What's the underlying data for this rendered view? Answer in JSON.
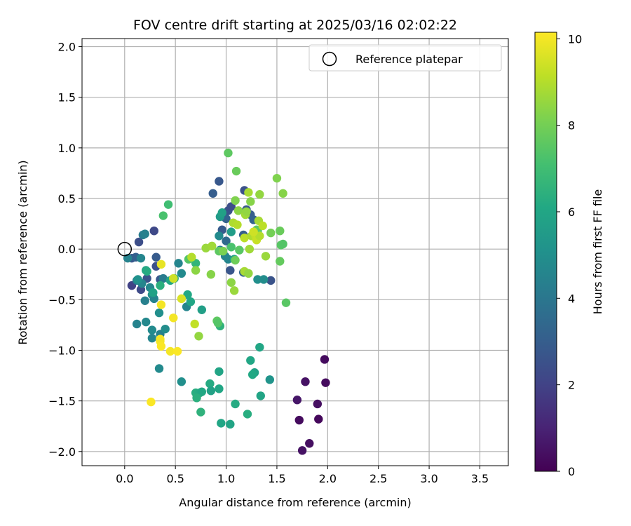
{
  "chart_data": {
    "type": "scatter",
    "title": "FOV centre drift starting at 2025/03/16 02:02:22",
    "xlabel": "Angular distance from reference (arcmin)",
    "ylabel": "Rotation from reference (arcmin)",
    "xlim": [
      -0.42,
      3.78
    ],
    "ylim": [
      -2.14,
      2.08
    ],
    "x_ticks": [
      0.0,
      0.5,
      1.0,
      1.5,
      2.0,
      2.5,
      3.0,
      3.5
    ],
    "x_tick_labels": [
      "0.0",
      "0.5",
      "1.0",
      "1.5",
      "2.0",
      "2.5",
      "3.0",
      "3.5"
    ],
    "y_ticks": [
      -2.0,
      -1.5,
      -1.0,
      -0.5,
      0.0,
      0.5,
      1.0,
      1.5,
      2.0
    ],
    "y_tick_labels": [
      "−2.0",
      "−1.5",
      "−1.0",
      "−0.5",
      "0.0",
      "0.5",
      "1.0",
      "1.5",
      "2.0"
    ],
    "grid": true,
    "legend": {
      "position": "top-right",
      "entries": [
        "Reference platepar"
      ]
    },
    "reference": {
      "x": 0.0,
      "y": 0.0
    },
    "colorbar": {
      "label": "Hours from first FF file",
      "range": [
        0,
        10.15
      ],
      "ticks": [
        0,
        2,
        4,
        6,
        8,
        10
      ],
      "tick_labels": [
        "0",
        "2",
        "4",
        "6",
        "8",
        "10"
      ],
      "colormap": "viridis"
    },
    "points": [
      {
        "x": 1.97,
        "y": -1.09,
        "h": 0.3
      },
      {
        "x": 1.78,
        "y": -1.31,
        "h": 0.5
      },
      {
        "x": 1.98,
        "y": -1.32,
        "h": 0.3
      },
      {
        "x": 1.7,
        "y": -1.49,
        "h": 0.6
      },
      {
        "x": 1.9,
        "y": -1.53,
        "h": 0.4
      },
      {
        "x": 1.72,
        "y": -1.69,
        "h": 0.3
      },
      {
        "x": 1.91,
        "y": -1.68,
        "h": 0.2
      },
      {
        "x": 1.82,
        "y": -1.92,
        "h": 0.4
      },
      {
        "x": 1.75,
        "y": -1.99,
        "h": 0.5
      },
      {
        "x": 0.29,
        "y": 0.18,
        "h": 2.2
      },
      {
        "x": 0.14,
        "y": 0.07,
        "h": 2.4
      },
      {
        "x": 0.07,
        "y": -0.09,
        "h": 2.8
      },
      {
        "x": 0.11,
        "y": -0.08,
        "h": 3.1
      },
      {
        "x": 0.07,
        "y": -0.36,
        "h": 2.0
      },
      {
        "x": 0.16,
        "y": -0.4,
        "h": 2.3
      },
      {
        "x": 0.22,
        "y": -0.29,
        "h": 2.6
      },
      {
        "x": 0.31,
        "y": -0.08,
        "h": 2.9
      },
      {
        "x": 0.31,
        "y": -0.17,
        "h": 2.5
      },
      {
        "x": 0.35,
        "y": -0.3,
        "h": 2.8
      },
      {
        "x": 0.96,
        "y": 0.19,
        "h": 2.9
      },
      {
        "x": 1.0,
        "y": 0.3,
        "h": 3.2
      },
      {
        "x": 1.02,
        "y": 0.38,
        "h": 2.6
      },
      {
        "x": 1.05,
        "y": 0.42,
        "h": 2.4
      },
      {
        "x": 1.18,
        "y": 0.58,
        "h": 2.5
      },
      {
        "x": 1.2,
        "y": 0.39,
        "h": 2.8
      },
      {
        "x": 1.24,
        "y": 0.34,
        "h": 3.0
      },
      {
        "x": 1.27,
        "y": 0.29,
        "h": 3.2
      },
      {
        "x": 1.17,
        "y": 0.14,
        "h": 3.0
      },
      {
        "x": 1.17,
        "y": -0.23,
        "h": 3.2
      },
      {
        "x": 1.04,
        "y": -0.21,
        "h": 2.7
      },
      {
        "x": 1.44,
        "y": -0.31,
        "h": 2.6
      },
      {
        "x": 0.87,
        "y": 0.55,
        "h": 3.0
      },
      {
        "x": 0.93,
        "y": 0.67,
        "h": 2.8
      },
      {
        "x": 1.0,
        "y": 0.08,
        "h": 3.5
      },
      {
        "x": 0.18,
        "y": 0.14,
        "h": 4.2
      },
      {
        "x": 0.2,
        "y": 0.15,
        "h": 4.4
      },
      {
        "x": 0.03,
        "y": -0.09,
        "h": 4.5
      },
      {
        "x": 0.16,
        "y": -0.09,
        "h": 4.6
      },
      {
        "x": 0.12,
        "y": -0.31,
        "h": 4.3
      },
      {
        "x": 0.17,
        "y": -0.34,
        "h": 4.6
      },
      {
        "x": 0.25,
        "y": -0.38,
        "h": 4.7
      },
      {
        "x": 0.27,
        "y": -0.45,
        "h": 4.9
      },
      {
        "x": 0.29,
        "y": -0.49,
        "h": 4.5
      },
      {
        "x": 0.2,
        "y": -0.51,
        "h": 4.4
      },
      {
        "x": 0.12,
        "y": -0.74,
        "h": 4.5
      },
      {
        "x": 0.21,
        "y": -0.72,
        "h": 4.7
      },
      {
        "x": 0.27,
        "y": -0.8,
        "h": 4.8
      },
      {
        "x": 0.27,
        "y": -0.88,
        "h": 4.6
      },
      {
        "x": 0.35,
        "y": -0.84,
        "h": 4.4
      },
      {
        "x": 0.4,
        "y": -0.79,
        "h": 4.9
      },
      {
        "x": 0.34,
        "y": -0.63,
        "h": 5.0
      },
      {
        "x": 0.34,
        "y": -1.18,
        "h": 4.8
      },
      {
        "x": 0.38,
        "y": -0.29,
        "h": 4.2
      },
      {
        "x": 0.53,
        "y": -0.14,
        "h": 4.6
      },
      {
        "x": 0.56,
        "y": -0.24,
        "h": 4.8
      },
      {
        "x": 0.61,
        "y": -0.57,
        "h": 4.6
      },
      {
        "x": 0.94,
        "y": -0.01,
        "h": 4.2
      },
      {
        "x": 0.99,
        "y": -0.07,
        "h": 4.5
      },
      {
        "x": 0.93,
        "y": 0.13,
        "h": 4.8
      },
      {
        "x": 1.02,
        "y": -0.1,
        "h": 4.6
      },
      {
        "x": 1.31,
        "y": -0.3,
        "h": 5.0
      },
      {
        "x": 1.37,
        "y": -0.3,
        "h": 4.9
      },
      {
        "x": 0.56,
        "y": -1.31,
        "h": 5.0
      },
      {
        "x": 1.43,
        "y": -1.29,
        "h": 5.2
      },
      {
        "x": 0.13,
        "y": -0.3,
        "h": 5.1
      },
      {
        "x": 0.21,
        "y": -0.21,
        "h": 6.0
      },
      {
        "x": 0.22,
        "y": -0.22,
        "h": 6.2
      },
      {
        "x": 0.28,
        "y": -0.43,
        "h": 5.8
      },
      {
        "x": 0.45,
        "y": -0.31,
        "h": 6.0
      },
      {
        "x": 0.49,
        "y": -0.29,
        "h": 6.3
      },
      {
        "x": 0.62,
        "y": -0.45,
        "h": 6.1
      },
      {
        "x": 0.65,
        "y": -0.52,
        "h": 6.0
      },
      {
        "x": 0.76,
        "y": -0.6,
        "h": 5.7
      },
      {
        "x": 0.94,
        "y": 0.32,
        "h": 5.5
      },
      {
        "x": 0.96,
        "y": 0.36,
        "h": 5.8
      },
      {
        "x": 1.05,
        "y": 0.17,
        "h": 5.6
      },
      {
        "x": 1.08,
        "y": -0.1,
        "h": 5.9
      },
      {
        "x": 1.33,
        "y": -0.97,
        "h": 6.0
      },
      {
        "x": 1.24,
        "y": -1.1,
        "h": 6.0
      },
      {
        "x": 1.28,
        "y": -1.22,
        "h": 5.8
      },
      {
        "x": 1.26,
        "y": -1.24,
        "h": 6.1
      },
      {
        "x": 0.93,
        "y": -1.21,
        "h": 5.9
      },
      {
        "x": 0.84,
        "y": -1.33,
        "h": 6.2
      },
      {
        "x": 0.85,
        "y": -1.4,
        "h": 5.8
      },
      {
        "x": 0.93,
        "y": -1.38,
        "h": 6.0
      },
      {
        "x": 0.7,
        "y": -1.42,
        "h": 6.3
      },
      {
        "x": 0.74,
        "y": -1.42,
        "h": 6.2
      },
      {
        "x": 0.76,
        "y": -1.41,
        "h": 6.1
      },
      {
        "x": 0.71,
        "y": -1.47,
        "h": 6.4
      },
      {
        "x": 0.75,
        "y": -1.61,
        "h": 6.5
      },
      {
        "x": 0.95,
        "y": -1.72,
        "h": 6.0
      },
      {
        "x": 1.04,
        "y": -1.73,
        "h": 5.9
      },
      {
        "x": 1.09,
        "y": -1.53,
        "h": 6.2
      },
      {
        "x": 1.21,
        "y": -1.63,
        "h": 6.3
      },
      {
        "x": 1.34,
        "y": -1.45,
        "h": 5.9
      },
      {
        "x": 0.35,
        "y": -0.36,
        "h": 6.4
      },
      {
        "x": 0.7,
        "y": -0.14,
        "h": 6.6
      },
      {
        "x": 0.94,
        "y": -0.76,
        "h": 6.5
      },
      {
        "x": 0.43,
        "y": 0.44,
        "h": 7.0
      },
      {
        "x": 0.38,
        "y": 0.33,
        "h": 7.2
      },
      {
        "x": 0.63,
        "y": -0.1,
        "h": 7.4
      },
      {
        "x": 0.91,
        "y": -0.71,
        "h": 7.6
      },
      {
        "x": 0.92,
        "y": -0.73,
        "h": 7.4
      },
      {
        "x": 1.02,
        "y": 0.95,
        "h": 7.6
      },
      {
        "x": 1.1,
        "y": 0.77,
        "h": 7.8
      },
      {
        "x": 1.05,
        "y": 0.02,
        "h": 7.2
      },
      {
        "x": 1.13,
        "y": -0.01,
        "h": 7.5
      },
      {
        "x": 1.31,
        "y": 0.18,
        "h": 7.3
      },
      {
        "x": 1.3,
        "y": 0.19,
        "h": 7.6
      },
      {
        "x": 1.53,
        "y": 0.18,
        "h": 7.8
      },
      {
        "x": 1.54,
        "y": 0.04,
        "h": 7.5
      },
      {
        "x": 1.56,
        "y": 0.05,
        "h": 7.4
      },
      {
        "x": 1.53,
        "y": -0.12,
        "h": 7.7
      },
      {
        "x": 1.59,
        "y": -0.53,
        "h": 7.5
      },
      {
        "x": 1.44,
        "y": 0.16,
        "h": 8.0
      },
      {
        "x": 1.5,
        "y": 0.7,
        "h": 8.2
      },
      {
        "x": 1.56,
        "y": 0.55,
        "h": 8.3
      },
      {
        "x": 1.09,
        "y": -0.11,
        "h": 7.9
      },
      {
        "x": 0.93,
        "y": -0.02,
        "h": 7.6
      },
      {
        "x": 0.85,
        "y": -0.25,
        "h": 8.3
      },
      {
        "x": 0.73,
        "y": -0.86,
        "h": 8.5
      },
      {
        "x": 0.7,
        "y": -0.21,
        "h": 8.4
      },
      {
        "x": 0.8,
        "y": 0.01,
        "h": 8.6
      },
      {
        "x": 0.86,
        "y": 0.03,
        "h": 8.7
      },
      {
        "x": 0.97,
        "y": -0.02,
        "h": 8.1
      },
      {
        "x": 1.05,
        "y": -0.33,
        "h": 8.4
      },
      {
        "x": 1.08,
        "y": -0.41,
        "h": 8.6
      },
      {
        "x": 1.18,
        "y": -0.22,
        "h": 8.8
      },
      {
        "x": 1.22,
        "y": -0.24,
        "h": 8.5
      },
      {
        "x": 1.23,
        "y": 0.0,
        "h": 8.7
      },
      {
        "x": 1.39,
        "y": -0.07,
        "h": 8.6
      },
      {
        "x": 1.09,
        "y": 0.48,
        "h": 8.2
      },
      {
        "x": 1.12,
        "y": 0.38,
        "h": 8.4
      },
      {
        "x": 1.19,
        "y": 0.34,
        "h": 8.7
      },
      {
        "x": 1.2,
        "y": 0.37,
        "h": 8.5
      },
      {
        "x": 1.22,
        "y": 0.56,
        "h": 8.8
      },
      {
        "x": 1.33,
        "y": 0.54,
        "h": 8.5
      },
      {
        "x": 1.24,
        "y": 0.47,
        "h": 8.3
      },
      {
        "x": 1.07,
        "y": 0.26,
        "h": 8.9
      },
      {
        "x": 1.11,
        "y": 0.24,
        "h": 9.0
      },
      {
        "x": 1.18,
        "y": 0.11,
        "h": 9.1
      },
      {
        "x": 1.25,
        "y": 0.13,
        "h": 8.9
      },
      {
        "x": 1.29,
        "y": 0.13,
        "h": 9.2
      },
      {
        "x": 1.3,
        "y": 0.09,
        "h": 9.3
      },
      {
        "x": 1.33,
        "y": 0.13,
        "h": 9.0
      },
      {
        "x": 1.32,
        "y": 0.28,
        "h": 8.8
      },
      {
        "x": 1.36,
        "y": 0.23,
        "h": 9.1
      },
      {
        "x": 1.27,
        "y": 0.17,
        "h": 9.4
      },
      {
        "x": 0.66,
        "y": -0.08,
        "h": 9.0
      },
      {
        "x": 0.69,
        "y": -0.74,
        "h": 9.2
      },
      {
        "x": 0.48,
        "y": -0.29,
        "h": 9.4
      },
      {
        "x": 0.56,
        "y": -0.49,
        "h": 9.6
      },
      {
        "x": 0.36,
        "y": -0.15,
        "h": 9.8
      },
      {
        "x": 0.36,
        "y": -0.55,
        "h": 10.0
      },
      {
        "x": 0.48,
        "y": -0.68,
        "h": 10.0
      },
      {
        "x": 0.35,
        "y": -0.89,
        "h": 10.1
      },
      {
        "x": 0.35,
        "y": -0.91,
        "h": 10.0
      },
      {
        "x": 0.36,
        "y": -0.96,
        "h": 10.1
      },
      {
        "x": 0.45,
        "y": -1.01,
        "h": 10.0
      },
      {
        "x": 0.52,
        "y": -1.01,
        "h": 10.1
      },
      {
        "x": 0.26,
        "y": -1.51,
        "h": 10.1
      }
    ]
  }
}
